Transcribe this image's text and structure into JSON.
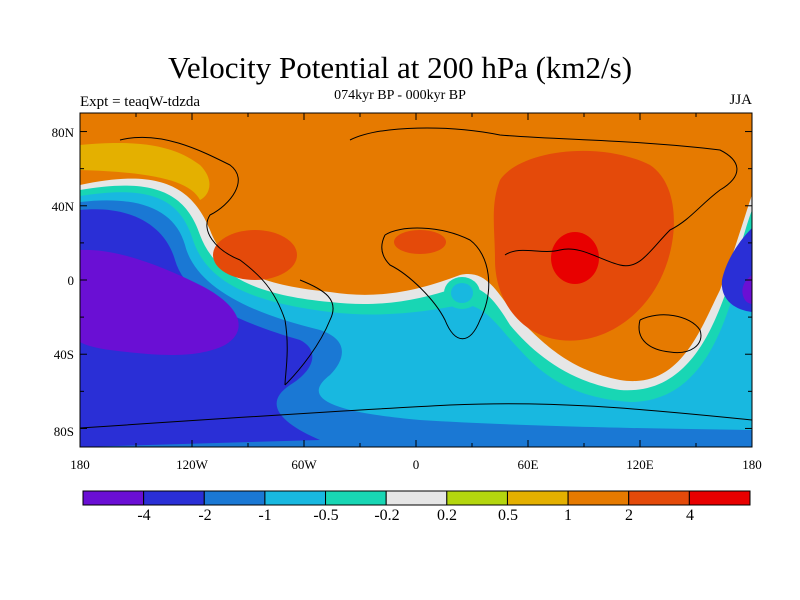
{
  "title": "Velocity Potential at 200 hPa (km2/s)",
  "subtitle": "074kyr BP - 000kyr BP",
  "left_label": "Expt = teaqW-tdzda",
  "right_label": "JJA",
  "latitude_labels": [
    "80N",
    "40N",
    "0",
    "40S",
    "80S"
  ],
  "longitude_labels": [
    "180",
    "120W",
    "60W",
    "0",
    "60E",
    "120E",
    "180"
  ],
  "colorbar": {
    "labels": [
      "-4",
      "-2",
      "-1",
      "-0.5",
      "-0.2",
      "0.2",
      "0.5",
      "1",
      "2",
      "4"
    ],
    "colors": [
      "#6a0fd4",
      "#2a2fd6",
      "#1a78d4",
      "#18b8e0",
      "#18d6b4",
      "#e6e6e6",
      "#b4d60e",
      "#e4b000",
      "#e67a00",
      "#e44a0a",
      "#e80000"
    ]
  },
  "map": {
    "base_color": "#e67a00",
    "contour_levels": [
      "-4",
      "-2",
      "-1",
      "-0.5",
      "-0.2",
      "0.2",
      "0.5",
      "1",
      "2",
      "4"
    ]
  }
}
